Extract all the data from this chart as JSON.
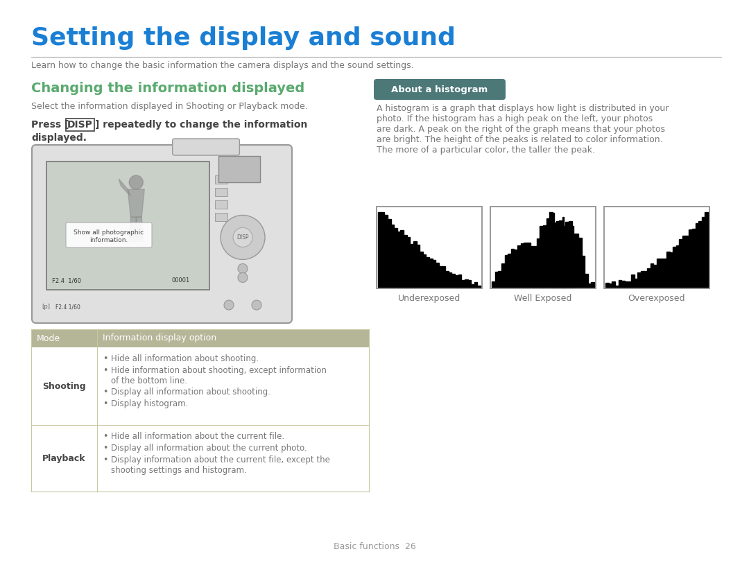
{
  "title": "Setting the display and sound",
  "title_color": "#1a7fd4",
  "subtitle": "Learn how to change the basic information the camera displays and the sound settings.",
  "subtitle_color": "#777777",
  "section1_title": "Changing the information displayed",
  "section1_title_color": "#5aaa6e",
  "section1_text": "Select the information displayed in Shooting or Playback mode.",
  "press_disp_text1": "Press [",
  "press_disp_word": "DISP",
  "press_disp_text2": "] repeatedly to change the information",
  "press_disp_line2": "displayed.",
  "section2_badge": "About a histogram",
  "section2_badge_bg": "#4d7878",
  "section2_badge_text_color": "#ffffff",
  "section2_text_lines": [
    "A histogram is a graph that displays how light is distributed in your",
    "photo. If the histogram has a high peak on the left, your photos",
    "are dark. A peak on the right of the graph means that your photos",
    "are bright. The height of the peaks is related to color information.",
    "The more of a particular color, the taller the peak."
  ],
  "section2_text_color": "#777777",
  "hist_labels": [
    "Underexposed",
    "Well Exposed",
    "Overexposed"
  ],
  "table_header_bg": "#b5b598",
  "table_header_text_color": "#ffffff",
  "table_border_color": "#c8c8a0",
  "table_mode_col": "Mode",
  "table_info_col": "Information display option",
  "table_mode1": "Shooting",
  "table_mode2": "Playback",
  "table_shooting_items": [
    "Hide all information about shooting.",
    "Hide information about shooting, except information\nof the bottom line.",
    "Display all information about shooting.",
    "Display histogram."
  ],
  "table_playback_items": [
    "Hide all information about the current file.",
    "Display all information about the current photo.",
    "Display information about the current file, except the\nshooting settings and histogram."
  ],
  "footer": "Basic functions  26",
  "bg_color": "#ffffff",
  "text_color": "#777777",
  "dark_text_color": "#444444"
}
